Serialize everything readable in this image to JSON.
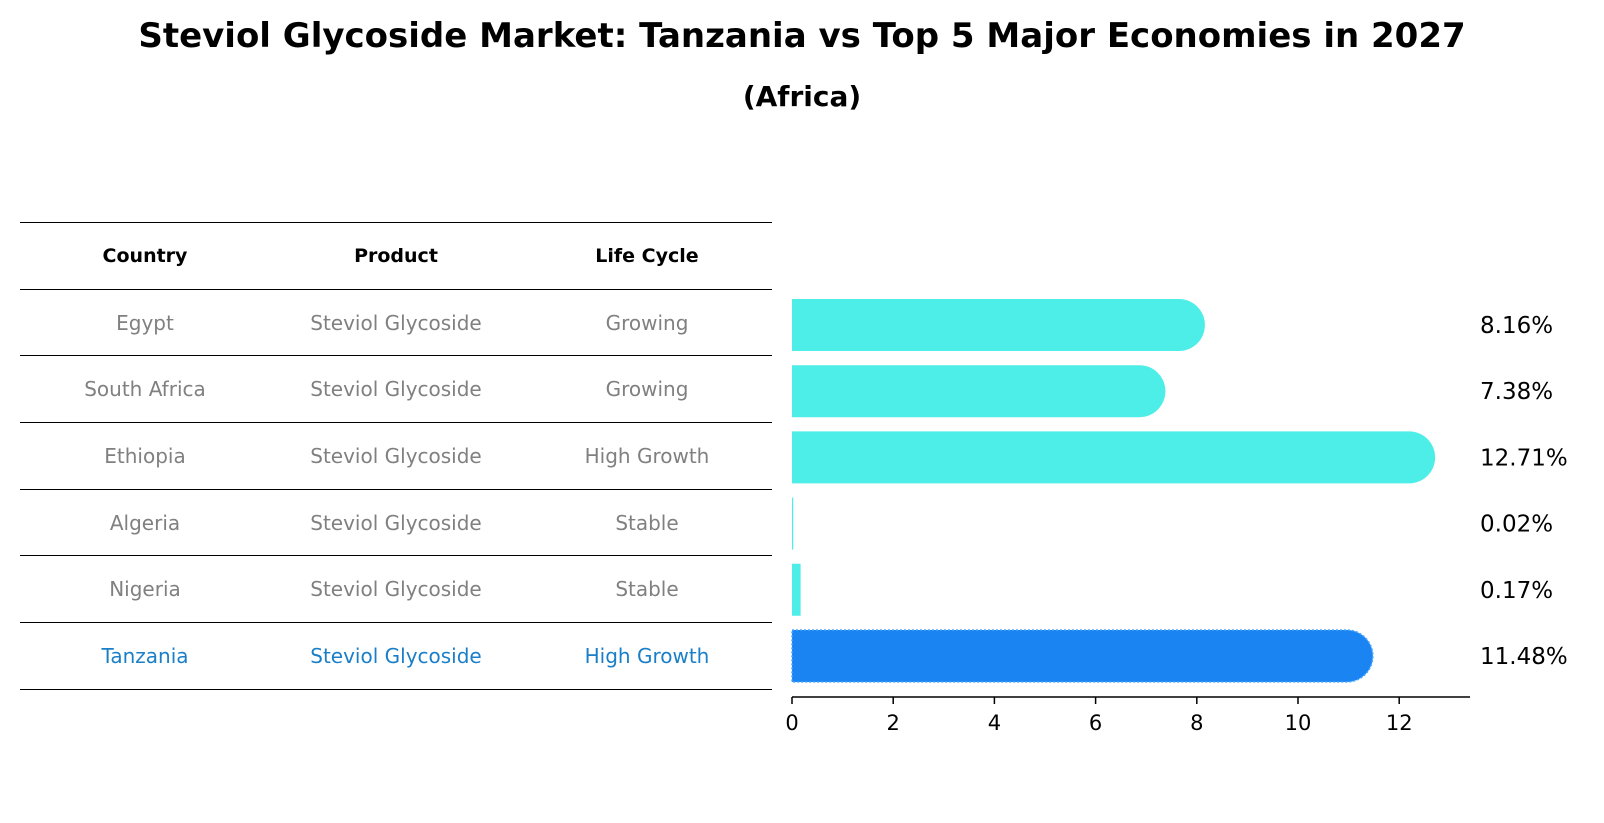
{
  "title": "Steviol Glycoside Market: Tanzania vs Top 5 Major Economies in 2027",
  "subtitle": "(Africa)",
  "table": {
    "headers": [
      "Country",
      "Product",
      "Life Cycle"
    ],
    "rows": [
      [
        "Egypt",
        "Steviol Glycoside",
        "Growing"
      ],
      [
        "South Africa",
        "Steviol Glycoside",
        "Growing"
      ],
      [
        "Ethiopia",
        "Steviol Glycoside",
        "High Growth"
      ],
      [
        "Algeria",
        "Steviol Glycoside",
        "Stable"
      ],
      [
        "Nigeria",
        "Steviol Glycoside",
        "Stable"
      ],
      [
        "Tanzania",
        "Steviol Glycoside",
        "High Growth"
      ]
    ]
  },
  "chart_data": {
    "type": "bar",
    "orientation": "horizontal",
    "title": "Steviol Glycoside Market: Tanzania vs Top 5 Major Economies in 2027",
    "subtitle": "(Africa)",
    "categories": [
      "Egypt",
      "South Africa",
      "Ethiopia",
      "Algeria",
      "Nigeria",
      "Tanzania"
    ],
    "values": [
      8.16,
      7.38,
      12.71,
      0.02,
      0.17,
      11.48
    ],
    "value_labels": [
      "8.16%",
      "7.38%",
      "12.71%",
      "0.02%",
      "0.17%",
      "11.48%"
    ],
    "highlight": "Tanzania",
    "xticks": [
      0,
      2,
      4,
      6,
      8,
      10,
      12
    ],
    "xlim": [
      0,
      13.4
    ],
    "colors": {
      "default": "#4dede8",
      "highlight": "#1a85f2"
    }
  }
}
